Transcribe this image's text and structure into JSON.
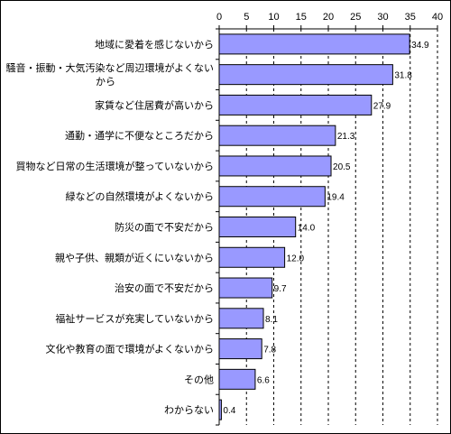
{
  "chart_data": {
    "type": "bar",
    "orientation": "horizontal",
    "title": "",
    "xlabel": "",
    "ylabel": "",
    "xlim": [
      0,
      40
    ],
    "ticks": [
      0,
      5,
      10,
      15,
      20,
      25,
      30,
      35,
      40
    ],
    "axis_position": "top",
    "grid": "vertical dashed",
    "bar_color": "#9999ff",
    "bar_border": "#000000",
    "categories": [
      [
        "地域に愛着を感じないから"
      ],
      [
        "騒音・振動・大気汚染など周辺環境がよくない",
        "から"
      ],
      [
        "家賃など住居費が高いから"
      ],
      [
        "通勤・通学に不便なところだから"
      ],
      [
        "買物など日常の生活環境が整っていないから"
      ],
      [
        "緑などの自然環境がよくないから"
      ],
      [
        "防災の面で不安だから"
      ],
      [
        "親や子供、親類が近くにいないから"
      ],
      [
        "治安の面で不安だから"
      ],
      [
        "福祉サービスが充実していないから"
      ],
      [
        "文化や教育の面で環境がよくないから"
      ],
      [
        "その他"
      ],
      [
        "わからない"
      ]
    ],
    "values": [
      34.9,
      31.8,
      27.9,
      21.3,
      20.5,
      19.4,
      14.0,
      12.0,
      9.7,
      8.1,
      7.8,
      6.6,
      0.4
    ],
    "value_labels": [
      "34.9",
      "31.8",
      "27.9",
      "21.3",
      "20.5",
      "19.4",
      "14.0",
      "12.0",
      "9.7",
      "8.1",
      "7.8",
      "6.6",
      "0.4"
    ]
  }
}
